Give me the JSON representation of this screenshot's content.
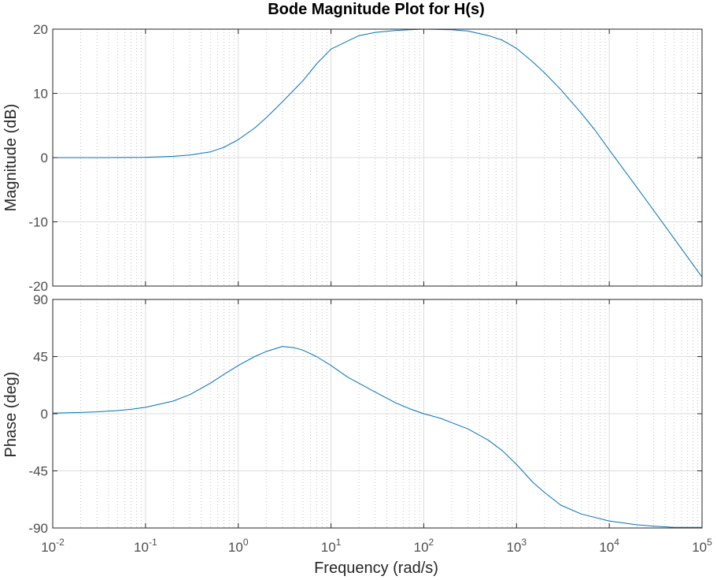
{
  "chart_data": [
    {
      "type": "line",
      "title": "Bode Magnitude Plot for H(s)",
      "xlabel": "",
      "ylabel": "Magnitude (dB)",
      "xscale": "log",
      "xlim": [
        0.01,
        100000
      ],
      "ylim": [
        -20,
        20
      ],
      "y_ticks": [
        "-20",
        "-10",
        "0",
        "10",
        "20"
      ],
      "grid": true,
      "minor_grid": true,
      "line_color": "#0072BD",
      "series": [
        {
          "x": [
            0.01,
            0.03,
            0.1,
            0.2,
            0.3,
            0.5,
            0.7,
            1,
            1.5,
            2,
            3,
            5,
            7,
            10,
            20,
            30,
            50,
            70,
            100,
            200,
            300,
            500,
            700,
            1000,
            1500,
            2000,
            3000,
            5000,
            7000,
            10000,
            20000,
            30000,
            50000,
            100000
          ],
          "values": [
            0,
            0,
            0.05,
            0.2,
            0.4,
            0.9,
            1.6,
            2.8,
            4.6,
            6.2,
            8.7,
            12.0,
            14.6,
            16.9,
            19.0,
            19.5,
            19.8,
            19.9,
            20.0,
            19.9,
            19.7,
            19.0,
            18.3,
            17.0,
            14.9,
            13.2,
            10.6,
            6.9,
            4.3,
            1.2,
            -4.7,
            -8.2,
            -12.6,
            -18.6
          ]
        }
      ]
    },
    {
      "type": "line",
      "xlabel": "Frequency  (rad/s)",
      "ylabel": "Phase (deg)",
      "xscale": "log",
      "xlim": [
        0.01,
        100000
      ],
      "ylim": [
        -90,
        90
      ],
      "x_ticks": [
        {
          "base": "10",
          "exp": "-2"
        },
        {
          "base": "10",
          "exp": "-1"
        },
        {
          "base": "10",
          "exp": "0"
        },
        {
          "base": "10",
          "exp": "1"
        },
        {
          "base": "10",
          "exp": "2"
        },
        {
          "base": "10",
          "exp": "3"
        },
        {
          "base": "10",
          "exp": "4"
        },
        {
          "base": "10",
          "exp": "5"
        }
      ],
      "y_ticks": [
        "-90",
        "-45",
        "0",
        "45",
        "90"
      ],
      "grid": true,
      "minor_grid": true,
      "line_color": "#0072BD",
      "series": [
        {
          "x": [
            0.01,
            0.02,
            0.03,
            0.05,
            0.07,
            0.1,
            0.2,
            0.3,
            0.5,
            0.7,
            1,
            1.5,
            2,
            3,
            4,
            5,
            7,
            10,
            15,
            20,
            30,
            50,
            70,
            100,
            150,
            200,
            300,
            500,
            700,
            1000,
            1500,
            2000,
            3000,
            5000,
            10000,
            20000,
            30000,
            50000,
            100000
          ],
          "values": [
            0.5,
            1,
            1.5,
            2.5,
            3.5,
            5,
            10,
            15,
            24,
            31,
            38,
            45,
            49,
            53,
            52,
            50,
            45,
            38,
            29,
            24,
            17,
            8.5,
            4,
            0,
            -3.5,
            -7,
            -12,
            -21,
            -29,
            -40,
            -54,
            -62,
            -72,
            -79,
            -84.5,
            -87.5,
            -88.5,
            -89.5,
            -89.5
          ]
        }
      ]
    }
  ]
}
